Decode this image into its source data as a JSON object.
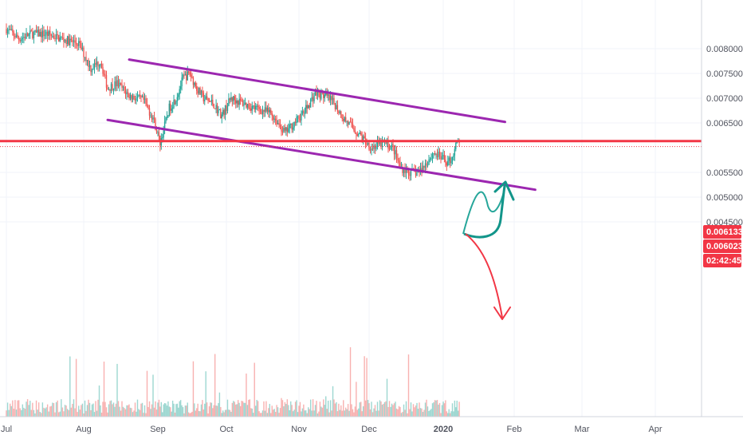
{
  "chart_data": {
    "type": "candlestick",
    "x_axis": {
      "ticks": [
        "Jul",
        "Aug",
        "Sep",
        "Oct",
        "Nov",
        "Dec",
        "2020",
        "Feb",
        "Mar",
        "Apr"
      ]
    },
    "y_axis": {
      "ticks": [
        "0.008000",
        "0.007500",
        "0.007000",
        "0.006500",
        "0.005500",
        "0.005000",
        "0.004500"
      ],
      "range": [
        0.0043,
        0.0084
      ],
      "position": "right"
    },
    "price_labels": [
      {
        "text": "0.006133",
        "value": 0.006133,
        "color": "#f23645"
      },
      {
        "text": "0.006023",
        "value": 0.006023,
        "color": "#f23645"
      },
      {
        "text": "02:42:45",
        "value": 0.005885,
        "color": "#f23645"
      }
    ],
    "horizontal_line": {
      "value": 0.006133,
      "color": "#f23645"
    },
    "channel": {
      "color": "#9c27b0",
      "upper": [
        [
          "Aug 20",
          0.00778
        ],
        [
          "Jan 28",
          0.00652
        ]
      ],
      "lower": [
        [
          "Aug 11",
          0.00656
        ],
        [
          "Feb 10",
          0.00515
        ]
      ]
    },
    "scenarios": [
      {
        "direction": "up",
        "color": "#26a69a"
      },
      {
        "direction": "down",
        "color": "#f23645"
      }
    ],
    "colors": {
      "up": "#26a69a",
      "down": "#ef5350",
      "grid": "#f0f3fa",
      "axis_text": "#50535e"
    },
    "grid": true
  }
}
